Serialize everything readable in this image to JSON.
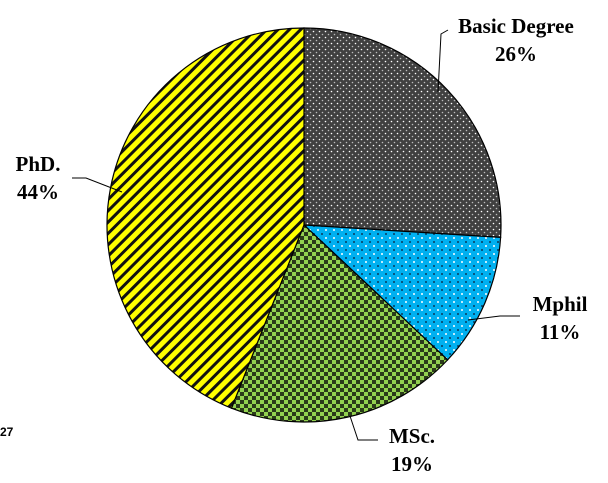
{
  "chart_data": {
    "type": "pie",
    "categories": [
      "Basic Degree",
      "Mphil",
      "MSc.",
      "PhD."
    ],
    "values": [
      26,
      11,
      19,
      44
    ],
    "value_labels": [
      "26%",
      "11%",
      "19%",
      "44%"
    ],
    "colors": [
      "#404040",
      "#00b0f0",
      "#92d050",
      "#ffff00"
    ],
    "annotation": "27"
  }
}
